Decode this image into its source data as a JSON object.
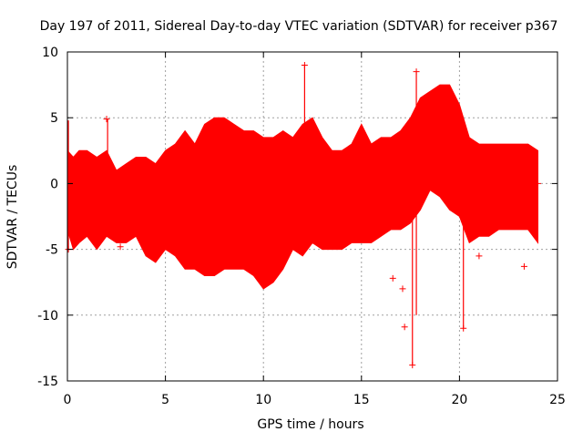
{
  "chart_data": {
    "type": "scatter",
    "title": "Day 197 of 2011, Sidereal Day-to-day VTEC variation (SDTVAR) for receiver p367",
    "xlabel": "GPS time / hours",
    "ylabel": "SDTVAR / TECUs",
    "xlim": [
      0,
      25
    ],
    "ylim": [
      -15,
      10
    ],
    "xticks": [
      0,
      5,
      10,
      15,
      20,
      25
    ],
    "yticks": [
      -15,
      -10,
      -5,
      0,
      5,
      10
    ],
    "grid": true,
    "color": "#ff0000",
    "series": [
      {
        "name": "SDTVAR",
        "envelope": {
          "x": [
            0.0,
            0.3,
            0.6,
            1.0,
            1.5,
            2.0,
            2.5,
            3.0,
            3.5,
            4.0,
            4.5,
            5.0,
            5.5,
            6.0,
            6.5,
            7.0,
            7.5,
            8.0,
            8.5,
            9.0,
            9.5,
            10.0,
            10.5,
            11.0,
            11.5,
            12.0,
            12.5,
            13.0,
            13.5,
            14.0,
            14.5,
            15.0,
            15.5,
            16.0,
            16.5,
            17.0,
            17.5,
            18.0,
            18.5,
            19.0,
            19.5,
            20.0,
            20.5,
            21.0,
            21.5,
            22.0,
            22.5,
            23.0,
            23.5,
            24.0
          ],
          "upper": [
            2.5,
            2.0,
            2.5,
            2.5,
            2.0,
            2.5,
            1.0,
            1.5,
            2.0,
            2.0,
            1.5,
            2.5,
            3.0,
            4.0,
            3.0,
            4.5,
            5.0,
            5.0,
            4.5,
            4.0,
            4.0,
            3.5,
            3.5,
            4.0,
            3.5,
            4.5,
            5.0,
            3.5,
            2.5,
            2.5,
            3.0,
            4.5,
            3.0,
            3.5,
            3.5,
            4.0,
            5.0,
            6.5,
            7.0,
            7.5,
            7.5,
            6.0,
            3.5,
            3.0,
            3.0,
            3.0,
            3.0,
            3.0,
            3.0,
            2.5
          ],
          "lower": [
            -3.5,
            -5.0,
            -4.5,
            -4.0,
            -5.0,
            -4.0,
            -4.5,
            -4.5,
            -4.0,
            -5.5,
            -6.0,
            -5.0,
            -5.5,
            -6.5,
            -6.5,
            -7.0,
            -7.0,
            -6.5,
            -6.5,
            -6.5,
            -7.0,
            -8.0,
            -7.5,
            -6.5,
            -5.0,
            -5.5,
            -4.5,
            -5.0,
            -5.0,
            -5.0,
            -4.5,
            -4.5,
            -4.5,
            -4.0,
            -3.5,
            -3.5,
            -3.0,
            -2.0,
            -0.5,
            -1.0,
            -2.0,
            -2.5,
            -4.5,
            -4.0,
            -4.0,
            -3.5,
            -3.5,
            -3.5,
            -3.5,
            -4.5
          ]
        },
        "spikes": [
          {
            "x": 0.05,
            "y0": -5.0,
            "y1": 4.8
          },
          {
            "x": 2.05,
            "y0": 0.5,
            "y1": 4.9
          },
          {
            "x": 12.1,
            "y0": -5.0,
            "y1": 9.0
          },
          {
            "x": 17.6,
            "y0": -13.8,
            "y1": -2.0
          },
          {
            "x": 17.8,
            "y0": -10.0,
            "y1": 8.5
          },
          {
            "x": 20.2,
            "y0": -11.0,
            "y1": -3.0
          }
        ],
        "outliers": [
          {
            "x": 0.05,
            "y": -5.0
          },
          {
            "x": 2.0,
            "y": 4.9
          },
          {
            "x": 2.7,
            "y": -4.8
          },
          {
            "x": 9.7,
            "y": 3.5
          },
          {
            "x": 12.1,
            "y": 9.0
          },
          {
            "x": 16.6,
            "y": -7.2
          },
          {
            "x": 17.1,
            "y": -8.0
          },
          {
            "x": 17.2,
            "y": -10.9
          },
          {
            "x": 17.6,
            "y": -13.8
          },
          {
            "x": 17.8,
            "y": 8.5
          },
          {
            "x": 20.2,
            "y": -11.0
          },
          {
            "x": 21.0,
            "y": -5.5
          },
          {
            "x": 23.3,
            "y": -6.3
          },
          {
            "x": 24.0,
            "y": 0.0
          }
        ]
      }
    ]
  }
}
